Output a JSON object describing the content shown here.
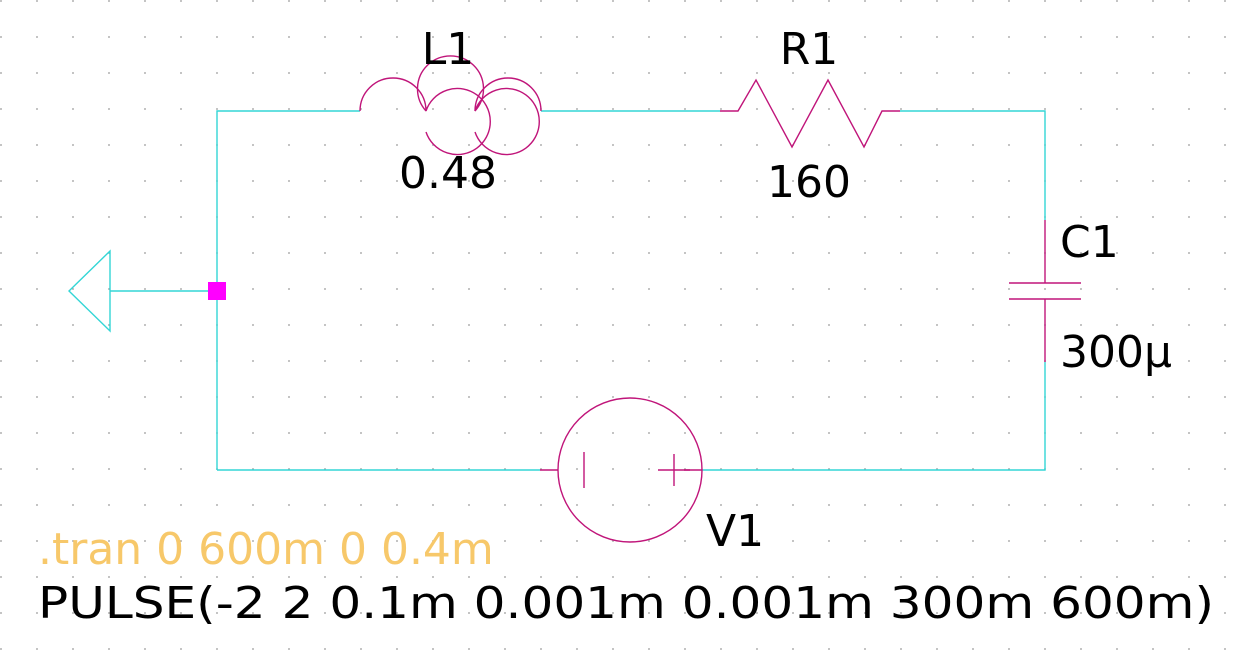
{
  "components": {
    "inductor": {
      "ref": "L1",
      "value": "0.48"
    },
    "resistor": {
      "ref": "R1",
      "value": "160"
    },
    "capacitor": {
      "ref": "C1",
      "value": "300µ"
    },
    "source": {
      "ref": "V1",
      "value": "PULSE(-2 2 0.1m 0.001m 0.001m 300m 600m)"
    }
  },
  "directive": ".tran 0 600m 0 0.4m",
  "colors": {
    "background": "#ffffff",
    "wire": "#33d6d6",
    "component": "#c0157a",
    "junction": "#ff00ff",
    "directive": "#f7c86a",
    "label": "#000000",
    "grid_dot": "#9a9a9a"
  }
}
